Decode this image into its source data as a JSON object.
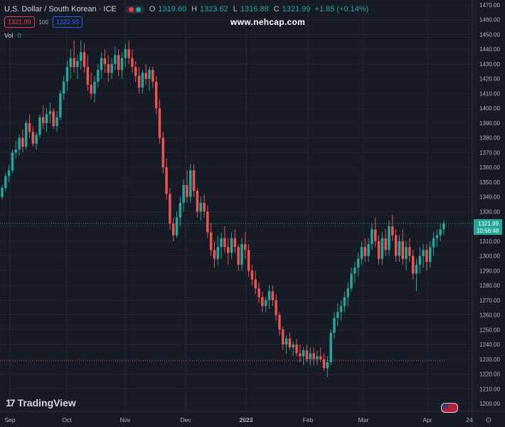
{
  "header": {
    "symbol": "U.S. Dollar / South Korean · ICE",
    "open_label": "O",
    "open": "1319.60",
    "high_label": "H",
    "high": "1323.62",
    "low_label": "L",
    "low": "1316.88",
    "close_label": "C",
    "close": "1321.99",
    "change": "+1.85 (+0.14%)",
    "sell_price": "1321.99",
    "spread": "100",
    "buy_price": "1322.99",
    "volume_label": "Vol",
    "volume": "0"
  },
  "watermark": "www.nehcap.com",
  "branding": "TradingView",
  "price_label": {
    "price": "1321.99",
    "countdown": "10:56:48"
  },
  "colors": {
    "background": "#161a25",
    "up": "#26a69a",
    "down": "#ef5350",
    "text": "#b2b5be",
    "grid": "#232632"
  },
  "chart_data": {
    "type": "candlestick",
    "ylim": [
      1195,
      1475
    ],
    "y_ticks": [
      1200,
      1210,
      1220,
      1230,
      1240,
      1250,
      1260,
      1270,
      1280,
      1290,
      1300,
      1310,
      1320,
      1330,
      1340,
      1350,
      1360,
      1370,
      1380,
      1390,
      1400,
      1410,
      1420,
      1430,
      1440,
      1450,
      1460,
      1470
    ],
    "x_ticks": [
      "Sep",
      "Oct",
      "Nov",
      "Dec",
      "2023",
      "Feb",
      "Mar",
      "Apr",
      "24"
    ],
    "last_price_line": 1321.99,
    "low_reference_line": 1229,
    "candles": [
      [
        1340,
        1348,
        1338,
        1346
      ],
      [
        1346,
        1356,
        1344,
        1354
      ],
      [
        1354,
        1362,
        1350,
        1358
      ],
      [
        1358,
        1372,
        1356,
        1370
      ],
      [
        1370,
        1378,
        1366,
        1372
      ],
      [
        1372,
        1382,
        1368,
        1380
      ],
      [
        1380,
        1386,
        1370,
        1374
      ],
      [
        1374,
        1392,
        1372,
        1390
      ],
      [
        1390,
        1396,
        1380,
        1384
      ],
      [
        1384,
        1388,
        1374,
        1376
      ],
      [
        1376,
        1384,
        1372,
        1382
      ],
      [
        1382,
        1396,
        1380,
        1394
      ],
      [
        1394,
        1402,
        1386,
        1390
      ],
      [
        1390,
        1400,
        1384,
        1396
      ],
      [
        1396,
        1404,
        1390,
        1398
      ],
      [
        1398,
        1400,
        1386,
        1388
      ],
      [
        1388,
        1398,
        1384,
        1394
      ],
      [
        1394,
        1412,
        1392,
        1410
      ],
      [
        1410,
        1422,
        1406,
        1418
      ],
      [
        1418,
        1432,
        1412,
        1428
      ],
      [
        1428,
        1440,
        1420,
        1434
      ],
      [
        1434,
        1446,
        1424,
        1428
      ],
      [
        1428,
        1436,
        1420,
        1432
      ],
      [
        1432,
        1446,
        1426,
        1438
      ],
      [
        1438,
        1444,
        1424,
        1428
      ],
      [
        1428,
        1436,
        1412,
        1416
      ],
      [
        1416,
        1424,
        1406,
        1410
      ],
      [
        1410,
        1422,
        1404,
        1418
      ],
      [
        1418,
        1430,
        1414,
        1426
      ],
      [
        1426,
        1438,
        1420,
        1434
      ],
      [
        1434,
        1440,
        1424,
        1430
      ],
      [
        1430,
        1436,
        1418,
        1424
      ],
      [
        1424,
        1434,
        1420,
        1430
      ],
      [
        1430,
        1442,
        1426,
        1436
      ],
      [
        1436,
        1440,
        1422,
        1426
      ],
      [
        1426,
        1438,
        1420,
        1434
      ],
      [
        1434,
        1444,
        1428,
        1440
      ],
      [
        1440,
        1446,
        1430,
        1434
      ],
      [
        1434,
        1440,
        1424,
        1428
      ],
      [
        1428,
        1432,
        1418,
        1422
      ],
      [
        1422,
        1428,
        1410,
        1414
      ],
      [
        1414,
        1426,
        1410,
        1424
      ],
      [
        1424,
        1430,
        1416,
        1420
      ],
      [
        1420,
        1428,
        1412,
        1426
      ],
      [
        1426,
        1428,
        1414,
        1418
      ],
      [
        1418,
        1422,
        1396,
        1400
      ],
      [
        1400,
        1406,
        1376,
        1380
      ],
      [
        1380,
        1384,
        1356,
        1360
      ],
      [
        1360,
        1366,
        1338,
        1342
      ],
      [
        1342,
        1346,
        1318,
        1322
      ],
      [
        1322,
        1326,
        1310,
        1314
      ],
      [
        1314,
        1330,
        1312,
        1326
      ],
      [
        1326,
        1340,
        1320,
        1336
      ],
      [
        1336,
        1352,
        1330,
        1348
      ],
      [
        1348,
        1358,
        1336,
        1340
      ],
      [
        1340,
        1362,
        1336,
        1358
      ],
      [
        1358,
        1362,
        1340,
        1344
      ],
      [
        1344,
        1346,
        1326,
        1330
      ],
      [
        1330,
        1340,
        1324,
        1336
      ],
      [
        1336,
        1342,
        1326,
        1330
      ],
      [
        1330,
        1334,
        1312,
        1316
      ],
      [
        1316,
        1322,
        1300,
        1304
      ],
      [
        1304,
        1310,
        1292,
        1298
      ],
      [
        1298,
        1314,
        1294,
        1306
      ],
      [
        1306,
        1316,
        1298,
        1312
      ],
      [
        1312,
        1320,
        1302,
        1306
      ],
      [
        1306,
        1312,
        1294,
        1302
      ],
      [
        1302,
        1316,
        1298,
        1312
      ],
      [
        1312,
        1318,
        1302,
        1306
      ],
      [
        1306,
        1308,
        1290,
        1294
      ],
      [
        1294,
        1312,
        1290,
        1308
      ],
      [
        1308,
        1316,
        1298,
        1304
      ],
      [
        1304,
        1308,
        1286,
        1290
      ],
      [
        1290,
        1294,
        1280,
        1284
      ],
      [
        1284,
        1290,
        1274,
        1278
      ],
      [
        1278,
        1282,
        1268,
        1272
      ],
      [
        1272,
        1276,
        1262,
        1266
      ],
      [
        1266,
        1272,
        1262,
        1270
      ],
      [
        1270,
        1280,
        1264,
        1276
      ],
      [
        1276,
        1280,
        1266,
        1270
      ],
      [
        1270,
        1274,
        1256,
        1260
      ],
      [
        1260,
        1262,
        1246,
        1250
      ],
      [
        1250,
        1252,
        1236,
        1240
      ],
      [
        1240,
        1246,
        1234,
        1244
      ],
      [
        1244,
        1248,
        1236,
        1238
      ],
      [
        1238,
        1242,
        1232,
        1240
      ],
      [
        1240,
        1244,
        1232,
        1234
      ],
      [
        1234,
        1240,
        1228,
        1232
      ],
      [
        1232,
        1238,
        1226,
        1236
      ],
      [
        1236,
        1240,
        1228,
        1230
      ],
      [
        1230,
        1238,
        1226,
        1234
      ],
      [
        1234,
        1238,
        1226,
        1230
      ],
      [
        1230,
        1236,
        1226,
        1232
      ],
      [
        1232,
        1238,
        1228,
        1230
      ],
      [
        1230,
        1234,
        1222,
        1224
      ],
      [
        1224,
        1232,
        1218,
        1228
      ],
      [
        1228,
        1250,
        1226,
        1248
      ],
      [
        1248,
        1262,
        1244,
        1258
      ],
      [
        1258,
        1268,
        1252,
        1262
      ],
      [
        1262,
        1270,
        1256,
        1266
      ],
      [
        1266,
        1276,
        1262,
        1272
      ],
      [
        1272,
        1282,
        1266,
        1278
      ],
      [
        1278,
        1292,
        1276,
        1288
      ],
      [
        1288,
        1296,
        1282,
        1292
      ],
      [
        1292,
        1302,
        1286,
        1298
      ],
      [
        1298,
        1310,
        1294,
        1306
      ],
      [
        1306,
        1312,
        1296,
        1300
      ],
      [
        1300,
        1312,
        1296,
        1308
      ],
      [
        1308,
        1322,
        1304,
        1318
      ],
      [
        1318,
        1326,
        1306,
        1310
      ],
      [
        1310,
        1314,
        1294,
        1298
      ],
      [
        1298,
        1316,
        1294,
        1312
      ],
      [
        1312,
        1318,
        1300,
        1304
      ],
      [
        1304,
        1324,
        1300,
        1320
      ],
      [
        1320,
        1328,
        1310,
        1314
      ],
      [
        1314,
        1318,
        1296,
        1300
      ],
      [
        1300,
        1314,
        1296,
        1310
      ],
      [
        1310,
        1318,
        1294,
        1298
      ],
      [
        1298,
        1310,
        1290,
        1306
      ],
      [
        1306,
        1312,
        1296,
        1300
      ],
      [
        1300,
        1304,
        1284,
        1288
      ],
      [
        1288,
        1298,
        1276,
        1294
      ],
      [
        1294,
        1306,
        1288,
        1300
      ],
      [
        1300,
        1308,
        1292,
        1304
      ],
      [
        1304,
        1308,
        1290,
        1296
      ],
      [
        1296,
        1310,
        1292,
        1306
      ],
      [
        1306,
        1316,
        1300,
        1312
      ],
      [
        1312,
        1318,
        1306,
        1314
      ],
      [
        1314,
        1322,
        1310,
        1318
      ],
      [
        1318,
        1324,
        1314,
        1322
      ]
    ]
  }
}
